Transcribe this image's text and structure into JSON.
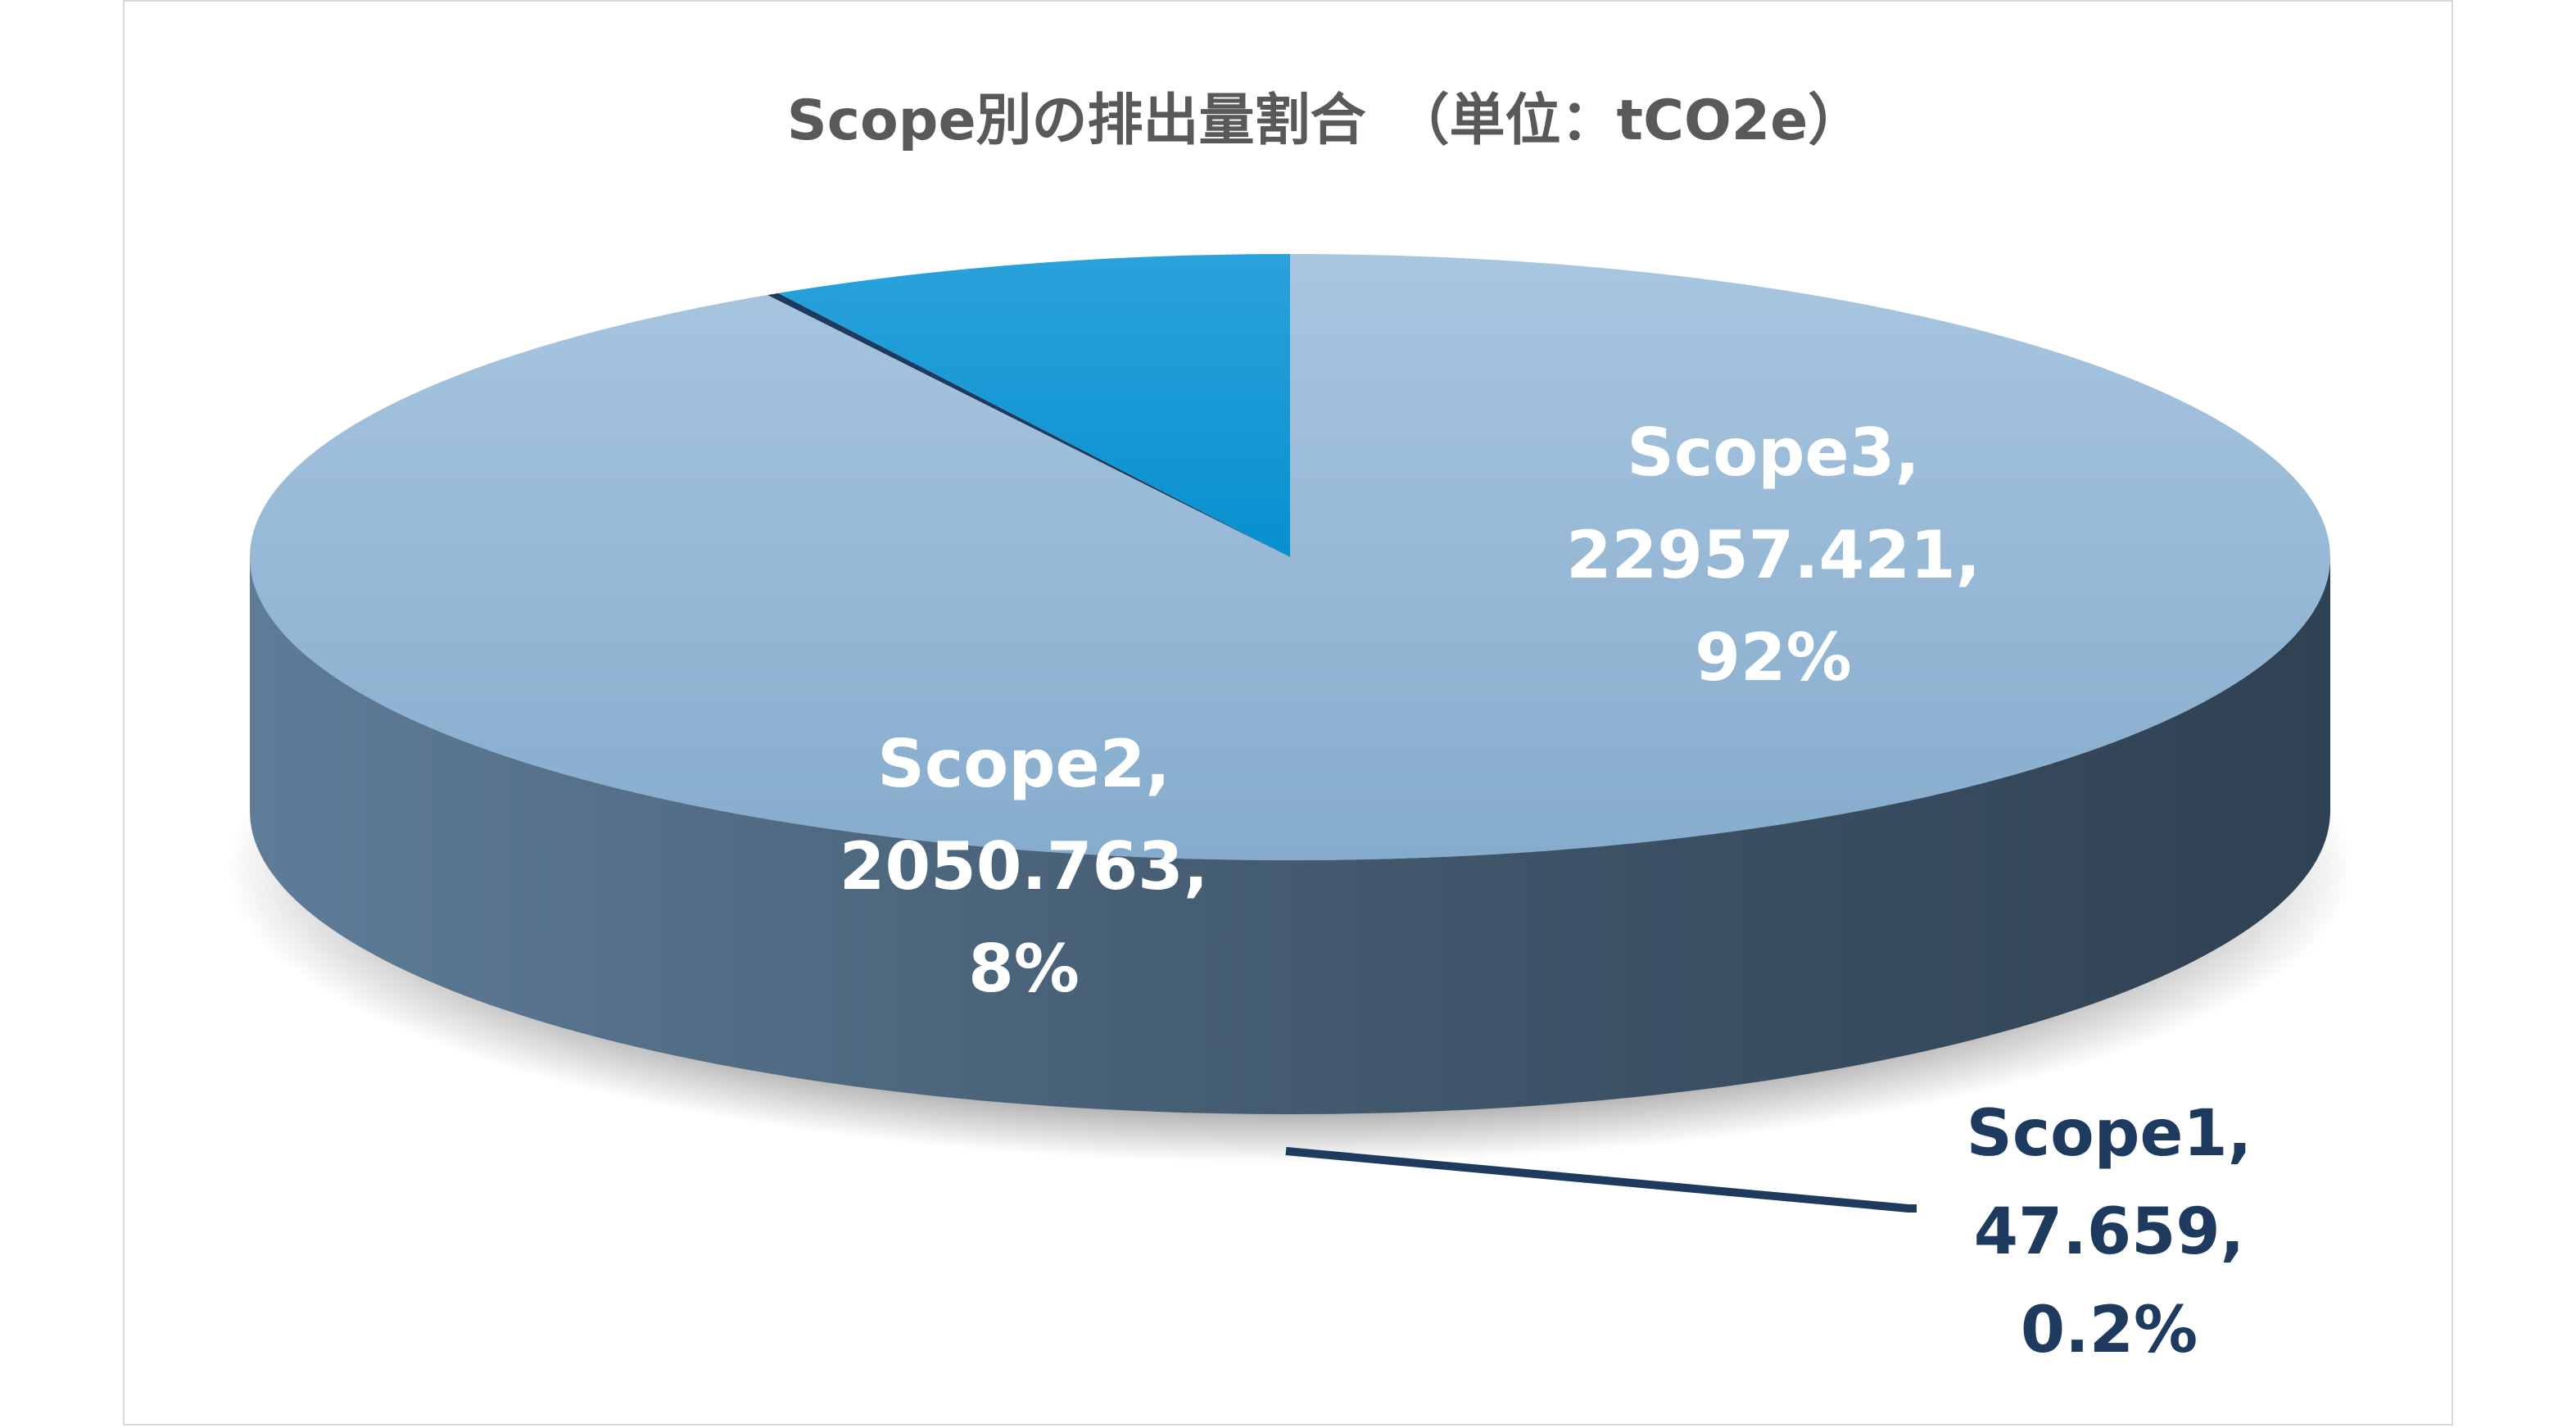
{
  "chart_data": {
    "type": "pie",
    "style": "3d",
    "title": "Scope別の排出量割合　（単位：tCO2e）",
    "categories": [
      "Scope1",
      "Scope2",
      "Scope3"
    ],
    "values": [
      47.659,
      2050.763,
      22957.421
    ],
    "percent_labels": [
      "0.2%",
      "8%",
      "92%"
    ],
    "labels": [
      {
        "line1": "Scope1,",
        "line2": "47.659,",
        "line3": "0.2%"
      },
      {
        "line1": "Scope2,",
        "line2": "2050.763,",
        "line3": "8%"
      },
      {
        "line1": "Scope3,",
        "line2": "22957.421,",
        "line3": "92%"
      }
    ],
    "colors": {
      "scope1": "#1f3a5f",
      "scope2": "#0a8fd0",
      "scope3": "#95bad9"
    },
    "legend": "none",
    "data_labels": true
  }
}
